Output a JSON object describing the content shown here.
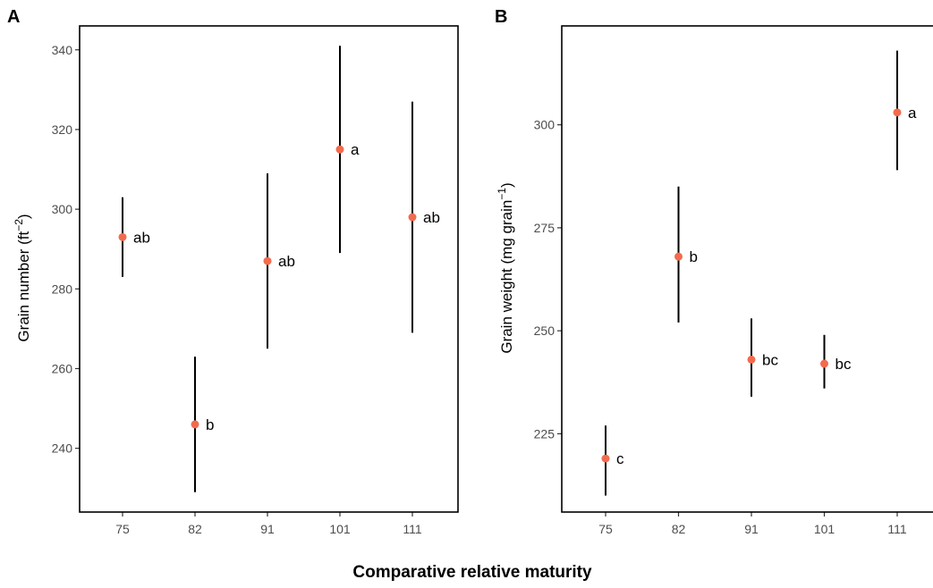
{
  "figure": {
    "xlabel": "Comparative relative maturity"
  },
  "chart_data": [
    {
      "panel": "A",
      "type": "scatter",
      "ylabel": "Grain number (ft",
      "ylabel_sup": "−2",
      "ylabel_suffix": ")",
      "categories": [
        "75",
        "82",
        "91",
        "101",
        "111"
      ],
      "ylim": [
        224,
        346
      ],
      "yticks": [
        240,
        260,
        280,
        300,
        320,
        340
      ],
      "grid": false,
      "series": [
        {
          "values": [
            293,
            246,
            287,
            315,
            298
          ],
          "lower": [
            283,
            229,
            265,
            289,
            269
          ],
          "upper": [
            303,
            263,
            309,
            341,
            327
          ],
          "labels": [
            "ab",
            "b",
            "ab",
            "a",
            "ab"
          ]
        }
      ]
    },
    {
      "panel": "B",
      "type": "scatter",
      "ylabel": "Grain weight (mg grain",
      "ylabel_sup": "−1",
      "ylabel_suffix": ")",
      "categories": [
        "75",
        "82",
        "91",
        "101",
        "111"
      ],
      "ylim": [
        206,
        324
      ],
      "yticks": [
        225,
        250,
        275,
        300
      ],
      "grid": false,
      "series": [
        {
          "values": [
            219,
            268,
            243,
            242,
            303
          ],
          "lower": [
            210,
            252,
            234,
            236,
            289
          ],
          "upper": [
            227,
            285,
            253,
            249,
            318
          ],
          "labels": [
            "c",
            "b",
            "bc",
            "bc",
            "a"
          ]
        }
      ]
    }
  ]
}
